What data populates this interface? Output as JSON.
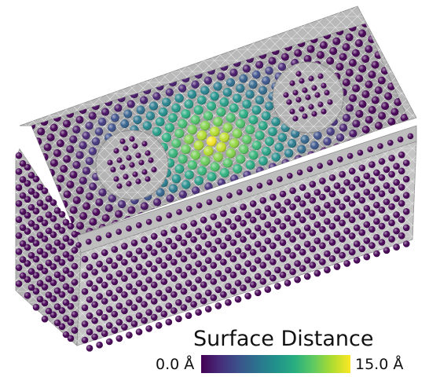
{
  "legend": {
    "title": "Surface Distance",
    "min_label": "0.0 Å",
    "max_label": "15.0 Å",
    "min_value": 0.0,
    "max_value": 15.0,
    "unit": "Å",
    "colormap": [
      "#440154",
      "#472d7b",
      "#3b528b",
      "#2c728e",
      "#21918c",
      "#28ae80",
      "#5ec962",
      "#addc30",
      "#fde725"
    ]
  },
  "colors": {
    "box_face": "#bdbdbd",
    "box_edge": "#ffffff",
    "bead_low": "#440154",
    "bead_high": "#fde725"
  }
}
